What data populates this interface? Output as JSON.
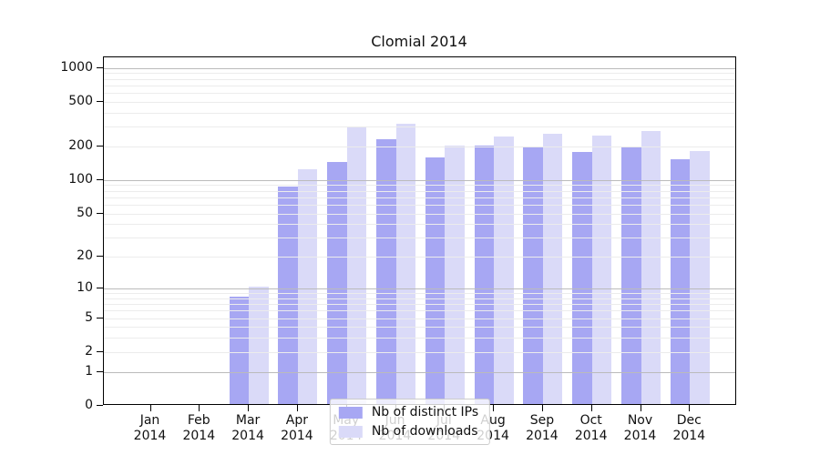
{
  "chart_data": {
    "type": "bar",
    "title": "Clomial 2014",
    "categories": [
      "Jan",
      "Feb",
      "Mar",
      "Apr",
      "May",
      "Jun",
      "Jul",
      "Aug",
      "Sep",
      "Oct",
      "Nov",
      "Dec"
    ],
    "x_year_label": "2014",
    "series": [
      {
        "name": "Nb of distinct IPs",
        "color": "#a7a7f3",
        "values": [
          0,
          0,
          8,
          85,
          141,
          224,
          154,
          196,
          190,
          172,
          187,
          149
        ]
      },
      {
        "name": "Nb of downloads",
        "color": "#dadaf8",
        "values": [
          0,
          0,
          10,
          120,
          287,
          305,
          195,
          238,
          250,
          240,
          263,
          175
        ]
      }
    ],
    "yscale": "log1p",
    "ylim": [
      0,
      1240
    ],
    "yticks": [
      1000,
      500,
      200,
      100,
      50,
      20,
      10,
      5,
      2,
      1,
      0
    ],
    "grid_major": [
      1,
      10,
      100,
      1000
    ],
    "grid_minor": [
      2,
      3,
      4,
      5,
      6,
      7,
      8,
      9,
      20,
      30,
      40,
      50,
      60,
      70,
      80,
      90,
      200,
      300,
      400,
      500,
      600,
      700,
      800,
      900
    ],
    "grid": "horizontal",
    "legend_position": "lower center",
    "xlabel": "",
    "ylabel": ""
  },
  "colors": {
    "background": "#ffffff",
    "axis": "#000000",
    "grid_major": "#bbbbbb",
    "grid_minor": "#ececec",
    "text": "#111111",
    "legend_border": "#cccccc"
  }
}
